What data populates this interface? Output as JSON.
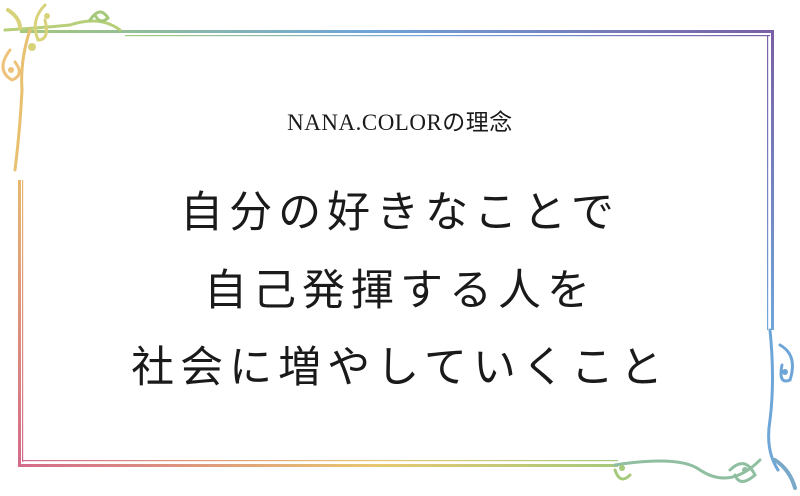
{
  "subtitle": "NANA.COLORの理念",
  "lines": [
    "自分の好きなことで",
    "自己発揮する人を",
    "社会に増やしていくこと"
  ],
  "colors": {
    "top_gradient": [
      "#a5c97a",
      "#6fa6d8",
      "#7a5fa6"
    ],
    "bottom_gradient": [
      "#d46a8a",
      "#e7c870",
      "#a5c97a"
    ],
    "left_gradient": [
      "#e7b870",
      "#d46a8a"
    ],
    "right_gradient": [
      "#7a5fa6",
      "#6fa6d8"
    ],
    "text": "#1a1a1a"
  },
  "ornaments": [
    "floral-flourish-top-left",
    "floral-flourish-bottom-right"
  ]
}
